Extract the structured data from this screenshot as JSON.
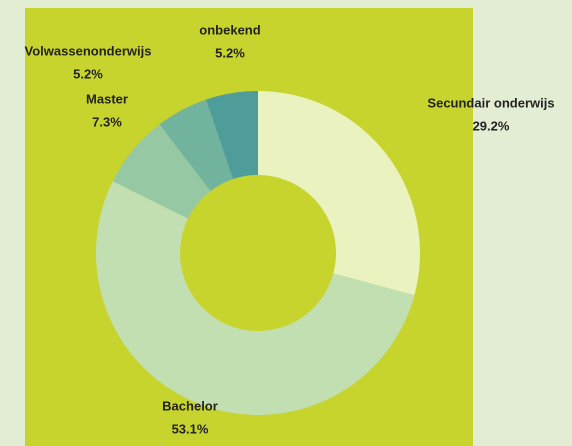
{
  "chart_data": {
    "type": "donut",
    "categories": [
      "Secundair onderwijs",
      "Bachelor",
      "Master",
      "Volwassenonderwijs",
      "onbekend"
    ],
    "values": [
      29.2,
      53.1,
      7.3,
      5.2,
      5.2
    ],
    "value_labels": [
      "29.2%",
      "53.1%",
      "7.3%",
      "5.2%",
      "5.2%"
    ],
    "colors": [
      "#eaf2bf",
      "#c2dfb2",
      "#96c8a4",
      "#72b39e",
      "#4f9d9b"
    ]
  }
}
